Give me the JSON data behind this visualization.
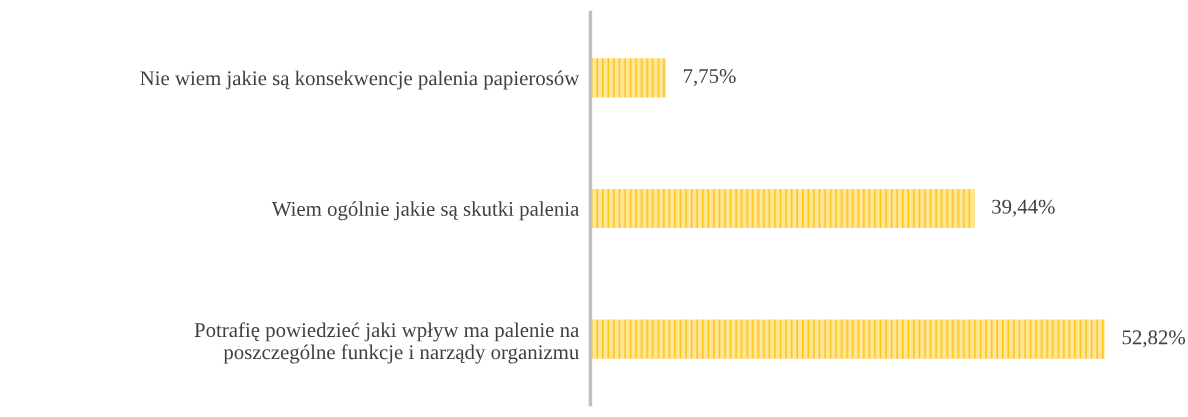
{
  "chart_data": {
    "type": "bar",
    "orientation": "horizontal",
    "categories": [
      "Nie wiem jakie są konsekwencje palenia papierosów",
      "Wiem ogólnie jakie są skutki palenia",
      "Potrafię powiedzieć jaki wpływ ma palenie na\nposzczególne funkcje i narządy organizmu"
    ],
    "values": [
      7.75,
      39.44,
      52.82
    ],
    "value_labels": [
      "7,75%",
      "39,44%",
      "52,82%"
    ],
    "color": "#ffc000",
    "grid": false,
    "legend": false
  }
}
